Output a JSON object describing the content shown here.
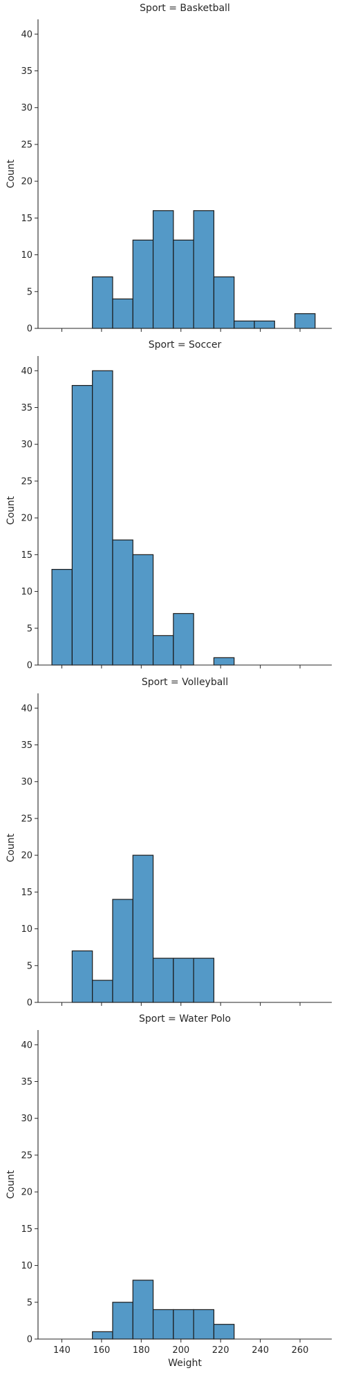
{
  "chart_data": {
    "type": "histogram",
    "facet_variable": "Sport",
    "xlabel": "Weight",
    "ylabel": "Count",
    "xlim": [
      128,
      276
    ],
    "ylim": [
      0,
      42
    ],
    "xticks": [
      140,
      160,
      180,
      200,
      220,
      240,
      260
    ],
    "yticks": [
      0,
      5,
      10,
      15,
      20,
      25,
      30,
      35,
      40
    ],
    "bin_edges": [
      135,
      145.2,
      155.4,
      165.6,
      175.8,
      186,
      196.2,
      206.4,
      216.6,
      226.8,
      237,
      247.2,
      257.4,
      267.6
    ],
    "bar_color": "#5499c7",
    "edge_color": "#1a1a1a",
    "grid": false,
    "legend": "none",
    "panels": [
      {
        "title": "Sport = Basketball",
        "counts": [
          0,
          0,
          7,
          4,
          12,
          16,
          12,
          16,
          7,
          1,
          1,
          0,
          2
        ]
      },
      {
        "title": "Sport = Soccer",
        "counts": [
          13,
          38,
          40,
          17,
          15,
          4,
          7,
          0,
          1,
          0,
          0,
          0,
          0
        ]
      },
      {
        "title": "Sport = Volleyball",
        "counts": [
          0,
          7,
          3,
          14,
          20,
          6,
          6,
          6,
          0,
          0,
          0,
          0,
          0
        ]
      },
      {
        "title": "Sport = Water Polo",
        "counts": [
          0,
          0,
          1,
          5,
          8,
          4,
          4,
          4,
          2,
          0,
          0,
          0,
          0
        ]
      }
    ]
  }
}
